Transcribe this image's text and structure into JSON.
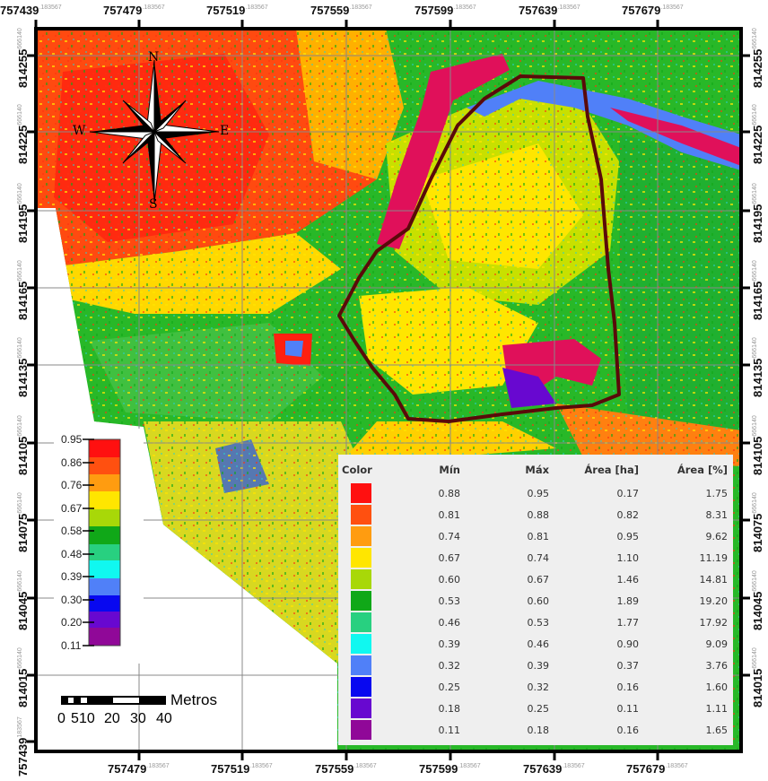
{
  "axes": {
    "x_ticks": [
      "757439",
      "757479",
      "757519",
      "757559",
      "757599",
      "757639",
      "757679"
    ],
    "x_suffix": ".183567",
    "y_ticks": [
      "814255",
      "814225",
      "814195",
      "814165",
      "814135",
      "814105",
      "814075",
      "814045",
      "814015"
    ],
    "y_suffix": "666140",
    "corner_label": "757439",
    "corner_suffix": "183567"
  },
  "compass": {
    "n": "N",
    "s": "S",
    "e": "E",
    "w": "W"
  },
  "colorbar": {
    "labels": [
      "0.95",
      "0.86",
      "0.76",
      "0.67",
      "0.58",
      "0.48",
      "0.39",
      "0.30",
      "0.20",
      "0.11"
    ]
  },
  "scalebar": {
    "unit": "Metros",
    "labels": [
      "0",
      "5",
      "10",
      "20",
      "30",
      "40"
    ]
  },
  "table": {
    "headers": {
      "color": "Color",
      "min": "Mín",
      "max": "Máx",
      "area_ha": "Área [ha]",
      "area_pct": "Área [%]"
    },
    "rows": [
      {
        "color": "#ff1010",
        "min": "0.88",
        "max": "0.95",
        "ha": "0.17",
        "pct": "1.75"
      },
      {
        "color": "#ff5010",
        "min": "0.81",
        "max": "0.88",
        "ha": "0.82",
        "pct": "8.31"
      },
      {
        "color": "#ff9c10",
        "min": "0.74",
        "max": "0.81",
        "ha": "0.95",
        "pct": "9.62"
      },
      {
        "color": "#ffe600",
        "min": "0.67",
        "max": "0.74",
        "ha": "1.10",
        "pct": "11.19"
      },
      {
        "color": "#a8d808",
        "min": "0.60",
        "max": "0.67",
        "ha": "1.46",
        "pct": "14.81"
      },
      {
        "color": "#10a818",
        "min": "0.53",
        "max": "0.60",
        "ha": "1.89",
        "pct": "19.20"
      },
      {
        "color": "#28d080",
        "min": "0.46",
        "max": "0.53",
        "ha": "1.77",
        "pct": "17.92"
      },
      {
        "color": "#10f8f0",
        "min": "0.39",
        "max": "0.46",
        "ha": "0.90",
        "pct": "9.09"
      },
      {
        "color": "#5080f8",
        "min": "0.32",
        "max": "0.39",
        "ha": "0.37",
        "pct": "3.76"
      },
      {
        "color": "#0808f0",
        "min": "0.25",
        "max": "0.32",
        "ha": "0.16",
        "pct": "1.60"
      },
      {
        "color": "#6808d0",
        "min": "0.18",
        "max": "0.25",
        "ha": "0.11",
        "pct": "1.11"
      },
      {
        "color": "#900898",
        "min": "0.11",
        "max": "0.18",
        "ha": "0.16",
        "pct": "1.65"
      }
    ]
  }
}
